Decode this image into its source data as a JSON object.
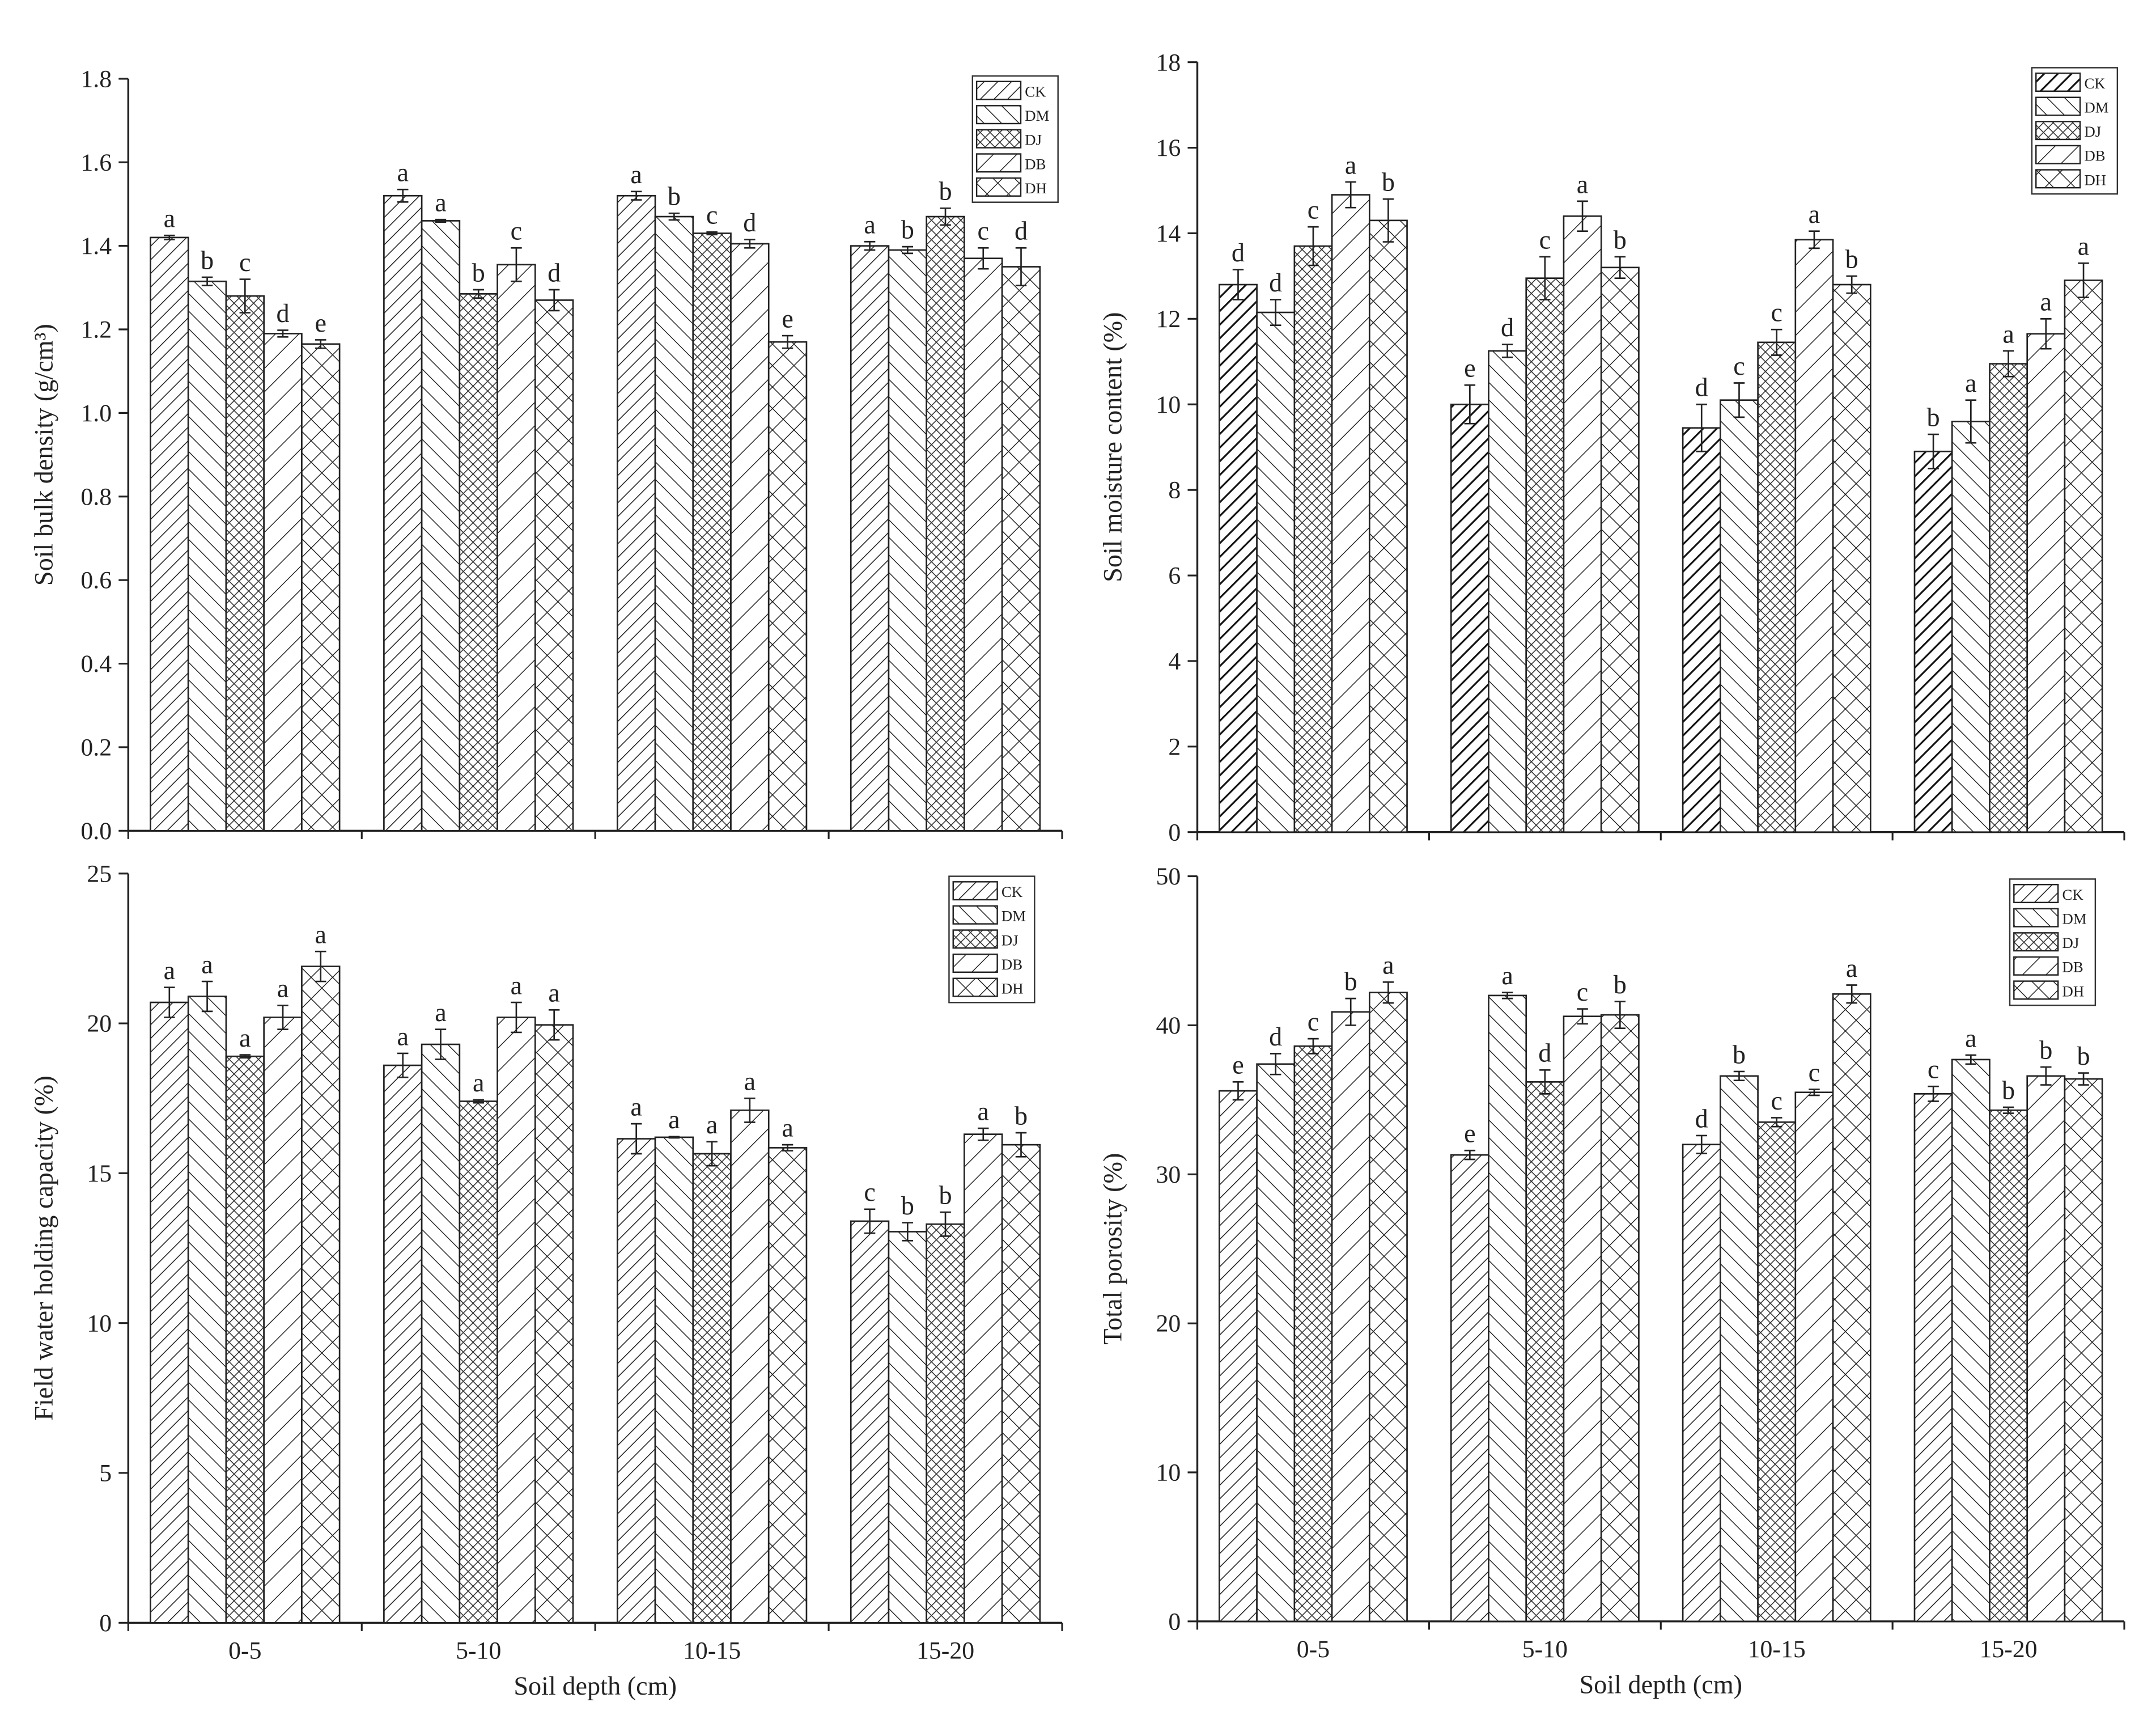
{
  "chart_data": [
    {
      "type": "bar",
      "y_label": "Soil bulk density (g/cm³)",
      "categories": [
        null,
        null,
        null,
        null
      ],
      "ylim": [
        0,
        1.8
      ],
      "yticks": [
        {
          "value": 0,
          "label": "0.0"
        },
        0.2,
        0.4,
        0.6,
        0.8,
        {
          "value": 1,
          "label": "1.0"
        },
        1.2,
        1.4,
        1.6,
        1.8
      ],
      "series": [
        {
          "name": "CK",
          "hatch": "fwd",
          "values": [
            1.42,
            1.52,
            1.52,
            1.4
          ],
          "errors": [
            0.005,
            0.015,
            0.01,
            0.01
          ],
          "letters": [
            "a",
            "a",
            "a",
            "a"
          ]
        },
        {
          "name": "DM",
          "hatch": "back",
          "values": [
            1.315,
            1.46,
            1.47,
            1.39
          ],
          "errors": [
            0.01,
            0.003,
            0.008,
            0.008
          ],
          "letters": [
            "b",
            "a",
            "b",
            "b"
          ]
        },
        {
          "name": "DJ",
          "hatch": "crossfine",
          "values": [
            1.28,
            1.285,
            1.43,
            1.47
          ],
          "errors": [
            0.04,
            0.01,
            0.003,
            0.02
          ],
          "letters": [
            "c",
            "b",
            "c",
            "b"
          ]
        },
        {
          "name": "DB",
          "hatch": "fwdwide",
          "values": [
            1.19,
            1.355,
            1.405,
            1.37
          ],
          "errors": [
            0.008,
            0.04,
            0.01,
            0.025
          ],
          "letters": [
            "d",
            "c",
            "d",
            "c"
          ]
        },
        {
          "name": "DH",
          "hatch": "cross",
          "values": [
            1.165,
            1.27,
            1.17,
            1.35
          ],
          "errors": [
            0.01,
            0.025,
            0.015,
            0.045
          ],
          "letters": [
            "e",
            "d",
            "e",
            "d"
          ]
        }
      ]
    },
    {
      "type": "bar",
      "y_label": "Soil moisture content (%)",
      "categories": [
        null,
        null,
        null,
        null
      ],
      "ylim": [
        0,
        18
      ],
      "yticks": [
        0,
        2,
        4,
        6,
        8,
        10,
        12,
        14,
        16,
        18
      ],
      "series": [
        {
          "name": "CK",
          "hatch": "fwdbold",
          "values": [
            12.8,
            10.0,
            9.45,
            8.9
          ],
          "errors": [
            0.35,
            0.45,
            0.55,
            0.4
          ],
          "letters": [
            "d",
            "e",
            "d",
            "b"
          ]
        },
        {
          "name": "DM",
          "hatch": "back",
          "values": [
            12.15,
            11.25,
            10.1,
            9.6
          ],
          "errors": [
            0.3,
            0.15,
            0.4,
            0.5
          ],
          "letters": [
            "d",
            "d",
            "c",
            "a"
          ]
        },
        {
          "name": "DJ",
          "hatch": "crossfine",
          "values": [
            13.7,
            12.95,
            11.45,
            10.95
          ],
          "errors": [
            0.45,
            0.5,
            0.3,
            0.3
          ],
          "letters": [
            "c",
            "c",
            "c",
            "a"
          ]
        },
        {
          "name": "DB",
          "hatch": "fwdwide",
          "values": [
            14.9,
            14.4,
            13.85,
            11.65
          ],
          "errors": [
            0.3,
            0.35,
            0.2,
            0.35
          ],
          "letters": [
            "a",
            "a",
            "a",
            "a"
          ]
        },
        {
          "name": "DH",
          "hatch": "cross",
          "values": [
            14.3,
            13.2,
            12.8,
            12.9
          ],
          "errors": [
            0.5,
            0.25,
            0.2,
            0.4
          ],
          "letters": [
            "b",
            "b",
            "b",
            "a"
          ]
        }
      ]
    },
    {
      "type": "bar",
      "y_label": "Field water holding capacity (%)",
      "x_label": "Soil depth (cm)",
      "categories": [
        "0-5",
        "5-10",
        "10-15",
        "15-20"
      ],
      "ylim": [
        0,
        25
      ],
      "yticks": [
        0,
        5,
        10,
        15,
        20,
        25
      ],
      "series": [
        {
          "name": "CK",
          "hatch": "fwd",
          "values": [
            20.7,
            18.6,
            16.15,
            13.4
          ],
          "errors": [
            0.5,
            0.4,
            0.5,
            0.4
          ],
          "letters": [
            "a",
            "a",
            "a",
            "c"
          ]
        },
        {
          "name": "DM",
          "hatch": "back",
          "values": [
            20.9,
            19.3,
            16.2,
            13.05
          ],
          "errors": [
            0.5,
            0.5,
            0.02,
            0.3
          ],
          "letters": [
            "a",
            "a",
            "a",
            "b"
          ]
        },
        {
          "name": "DJ",
          "hatch": "crossfine",
          "values": [
            18.9,
            17.4,
            15.65,
            13.3
          ],
          "errors": [
            0.05,
            0.05,
            0.4,
            0.4
          ],
          "letters": [
            "a",
            "a",
            "a",
            "b"
          ]
        },
        {
          "name": "DB",
          "hatch": "fwdwide",
          "values": [
            20.2,
            20.2,
            17.1,
            16.3
          ],
          "errors": [
            0.4,
            0.5,
            0.4,
            0.2
          ],
          "letters": [
            "a",
            "a",
            "a",
            "a"
          ]
        },
        {
          "name": "DH",
          "hatch": "cross",
          "values": [
            21.9,
            19.95,
            15.85,
            15.95
          ],
          "errors": [
            0.5,
            0.5,
            0.1,
            0.4
          ],
          "letters": [
            "a",
            "a",
            "a",
            "b"
          ]
        }
      ]
    },
    {
      "type": "bar",
      "y_label": "Total porosity (%)",
      "x_label": "Soil depth (cm)",
      "categories": [
        "0-5",
        "5-10",
        "10-15",
        "15-20"
      ],
      "ylim": [
        0,
        50
      ],
      "yticks": [
        0,
        10,
        20,
        30,
        40,
        50
      ],
      "series": [
        {
          "name": "CK",
          "hatch": "fwd",
          "values": [
            35.6,
            31.3,
            32.0,
            35.4
          ],
          "errors": [
            0.6,
            0.3,
            0.6,
            0.5
          ],
          "letters": [
            "e",
            "e",
            "d",
            "c"
          ]
        },
        {
          "name": "DM",
          "hatch": "back",
          "values": [
            37.4,
            42.0,
            36.6,
            37.7
          ],
          "errors": [
            0.7,
            0.2,
            0.3,
            0.3
          ],
          "letters": [
            "d",
            "a",
            "b",
            "a"
          ]
        },
        {
          "name": "DJ",
          "hatch": "crossfine",
          "values": [
            38.6,
            36.2,
            33.5,
            34.3
          ],
          "errors": [
            0.5,
            0.8,
            0.3,
            0.2
          ],
          "letters": [
            "c",
            "d",
            "c",
            "b"
          ]
        },
        {
          "name": "DB",
          "hatch": "fwdwide",
          "values": [
            40.9,
            40.6,
            35.5,
            36.6
          ],
          "errors": [
            0.9,
            0.5,
            0.2,
            0.6
          ],
          "letters": [
            "b",
            "c",
            "c",
            "b"
          ]
        },
        {
          "name": "DH",
          "hatch": "cross",
          "values": [
            42.2,
            40.7,
            42.1,
            36.4
          ],
          "errors": [
            0.7,
            0.9,
            0.6,
            0.4
          ],
          "letters": [
            "a",
            "b",
            "a",
            "b"
          ]
        }
      ]
    }
  ]
}
